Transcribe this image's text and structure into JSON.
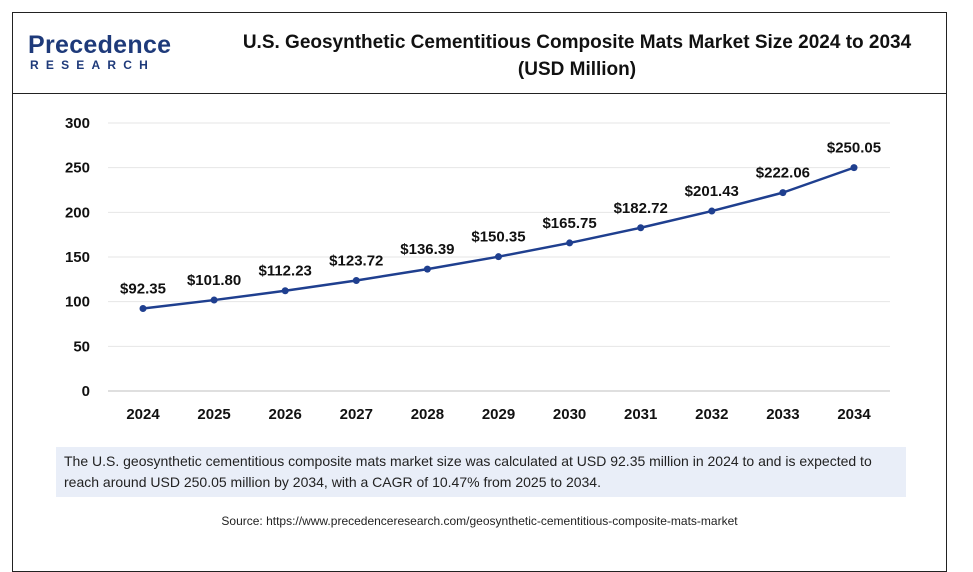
{
  "brand": {
    "logo_top": "Precedence",
    "logo_bottom": "RESEARCH"
  },
  "header": {
    "title_line1": "U.S. Geosynthetic Cementitious Composite Mats Market Size 2024 to 2034",
    "title_line2": "(USD Million)"
  },
  "chart_data": {
    "type": "line",
    "title": "U.S. Geosynthetic Cementitious Composite Mats Market Size 2024 to 2034 (USD Million)",
    "xlabel": "",
    "ylabel": "",
    "categories": [
      "2024",
      "2025",
      "2026",
      "2027",
      "2028",
      "2029",
      "2030",
      "2031",
      "2032",
      "2033",
      "2034"
    ],
    "series": [
      {
        "values": [
          92.35,
          101.8,
          112.23,
          123.72,
          136.39,
          150.35,
          165.75,
          182.72,
          201.43,
          222.06,
          250.05
        ],
        "labels": [
          "$92.35",
          "$101.80",
          "$112.23",
          "$123.72",
          "$136.39",
          "$150.35",
          "$165.75",
          "$182.72",
          "$201.43",
          "$222.06",
          "$250.05"
        ],
        "color": "#1f3f8f"
      }
    ],
    "ylim": [
      0,
      300
    ],
    "yticks": [
      0,
      50,
      100,
      150,
      200,
      250,
      300
    ],
    "grid": true,
    "gridColor": "#e6e6e6"
  },
  "note": {
    "text": "The U.S. geosynthetic cementitious composite mats market size was calculated at USD 92.35 million in 2024 to and is expected to reach around USD 250.05 million by 2034, with a CAGR of 10.47% from 2025 to 2034."
  },
  "source": {
    "text": "Source: https://www.precedenceresearch.com/geosynthetic-cementitious-composite-mats-market"
  }
}
